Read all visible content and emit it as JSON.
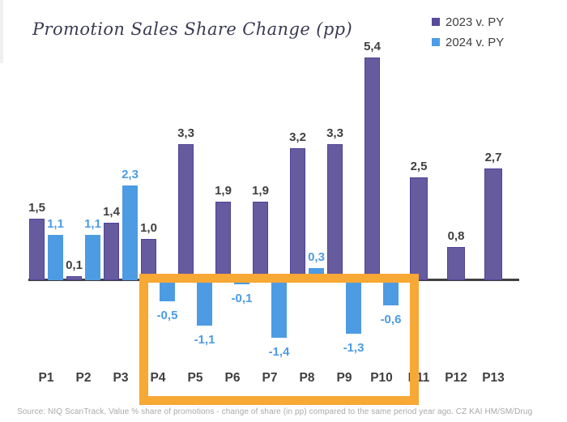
{
  "title": "Promotion Sales Share Change (pp)",
  "legend": [
    {
      "label": "2023 v. PY",
      "color": "#584a99"
    },
    {
      "label": "2024 v. PY",
      "color": "#4d9ce8"
    }
  ],
  "source": "Source: NIQ ScanTrack, Value % share of promotions - change of share (in pp) compared to the same period year ago. CZ KAI HM/SM/Drug",
  "chart_data": {
    "type": "bar",
    "title": "Promotion Sales Share Change (pp)",
    "categories": [
      "P1",
      "P2",
      "P3",
      "P4",
      "P5",
      "P6",
      "P7",
      "P8",
      "P9",
      "P10",
      "P11",
      "P12",
      "P13"
    ],
    "series": [
      {
        "name": "2023 v. PY",
        "color": "#675b9f",
        "border_color": "#4f4296",
        "label_color": "#3f3f3f",
        "values": [
          1.5,
          0.1,
          1.4,
          1.0,
          3.3,
          1.9,
          1.9,
          3.2,
          3.3,
          5.4,
          2.5,
          0.8,
          2.7
        ]
      },
      {
        "name": "2024 v. PY",
        "color": "#4d9be3",
        "border_color": "",
        "label_color": "#4d9be3",
        "values": [
          1.1,
          1.1,
          2.3,
          -0.5,
          -1.1,
          -0.1,
          -1.4,
          0.3,
          -1.3,
          -0.6,
          null,
          null,
          null
        ]
      }
    ],
    "decimal_separator": ",",
    "ylim": [
      -2,
      6
    ],
    "grid": false,
    "legend_position": "top-right",
    "highlight_box": {
      "from_category": "P4",
      "to_category": "P10",
      "color": "#f7a835"
    }
  }
}
